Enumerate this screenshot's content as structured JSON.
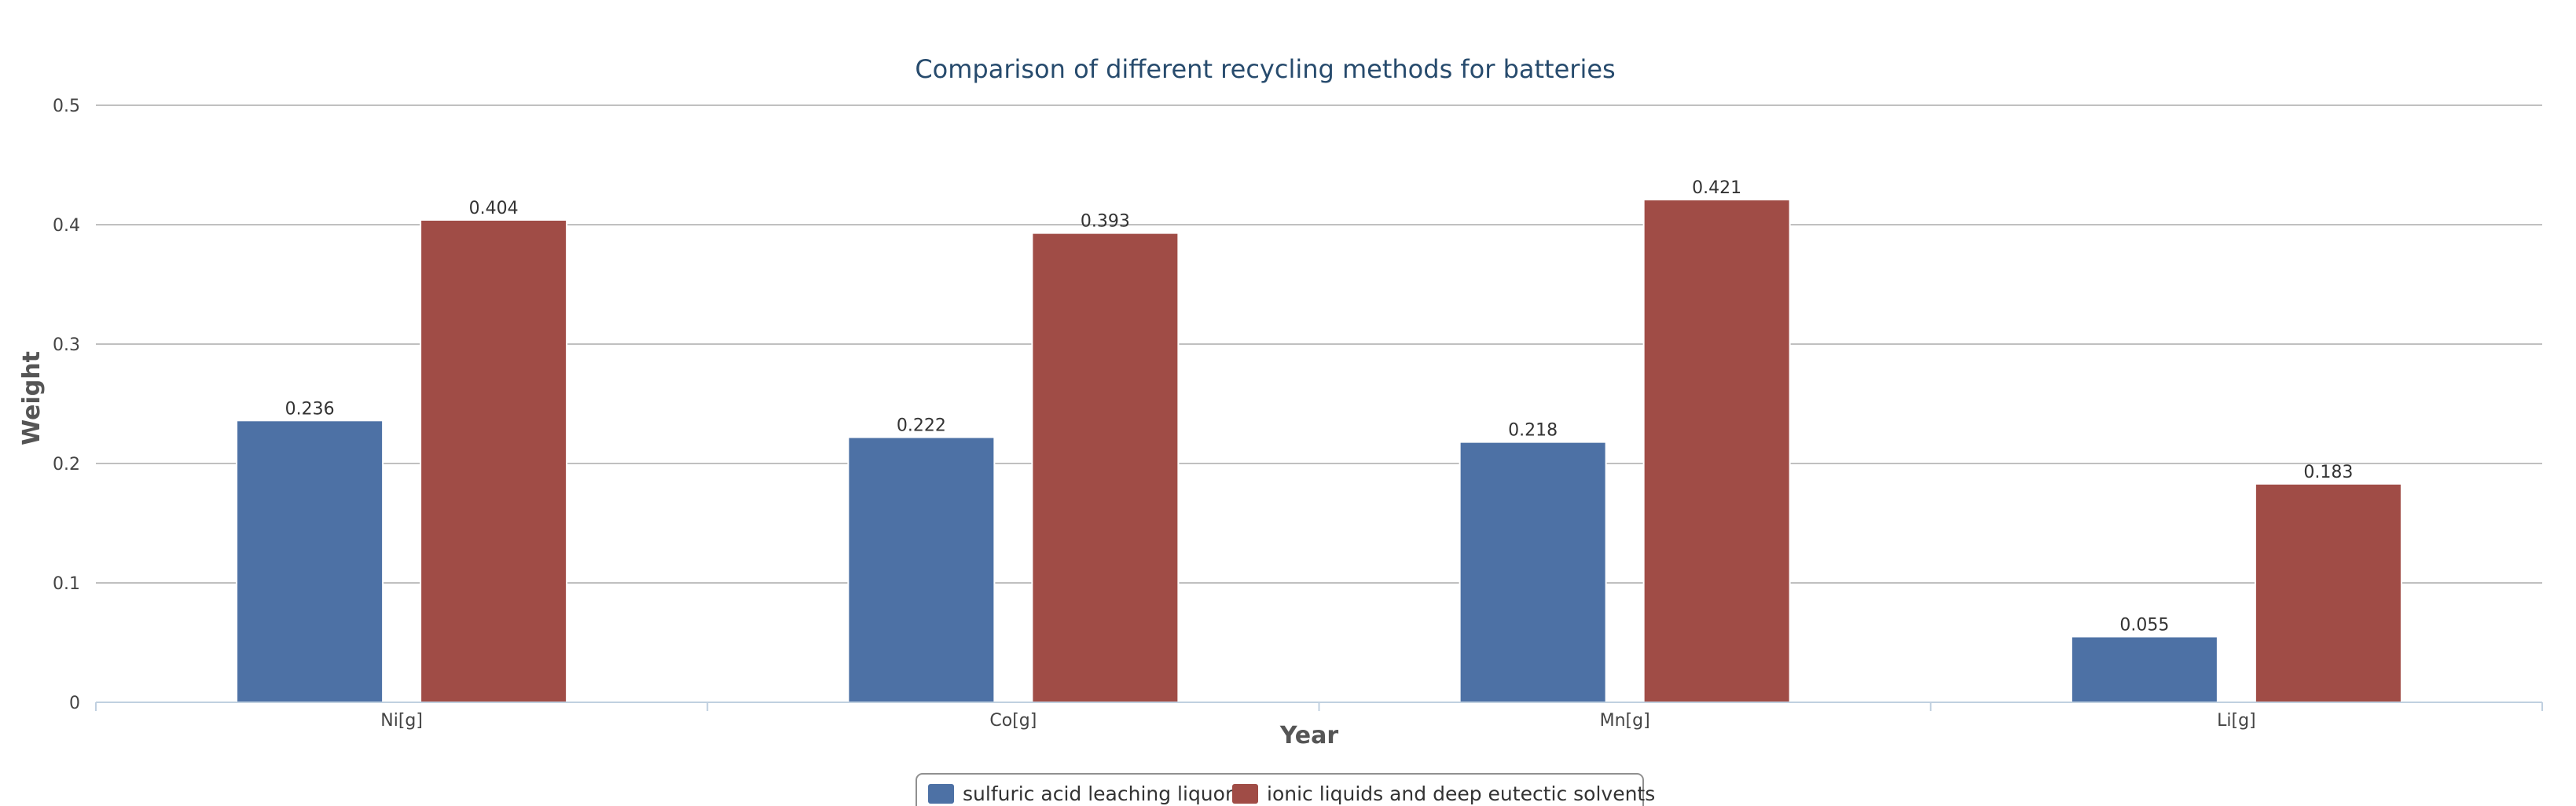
{
  "chart_data": {
    "type": "bar",
    "title": "Comparison of different recycling methods for batteries",
    "xlabel": "Year",
    "ylabel": "Weight",
    "categories": [
      "Ni[g]",
      "Co[g]",
      "Mn[g]",
      "Li[g]"
    ],
    "series": [
      {
        "name": "sulfuric acid leaching liquor",
        "values": [
          0.236,
          0.222,
          0.218,
          0.055
        ],
        "color": "#4d71a5"
      },
      {
        "name": "ionic liquids and deep eutectic solvents",
        "values": [
          0.404,
          0.393,
          0.421,
          0.183
        ],
        "color": "#a04c46"
      }
    ],
    "ylim": [
      0,
      0.5
    ],
    "yticks": [
      0,
      0.1,
      0.2,
      0.3,
      0.4,
      0.5
    ],
    "ytick_labels": [
      "0",
      "0.1",
      "0.2",
      "0.3",
      "0.4",
      "0.5"
    ],
    "grid": true,
    "legend_position": "bottom-center",
    "data_labels": true,
    "gridline_color": "#c0c0c0",
    "axis_color": "#c0d0e0"
  }
}
